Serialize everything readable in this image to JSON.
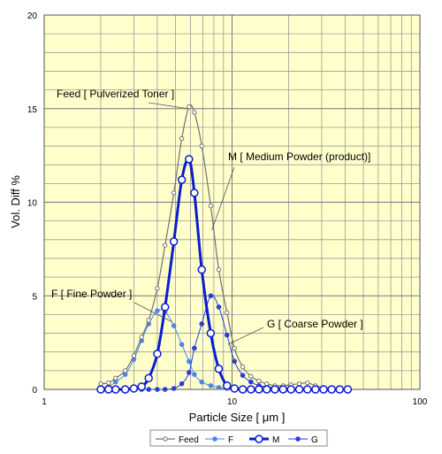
{
  "chart_data": {
    "type": "line",
    "xscale": "log",
    "xlim": [
      1,
      100
    ],
    "ylim": [
      0,
      20
    ],
    "x_ticks": [
      1,
      10,
      100
    ],
    "x_tick_labels": [
      "1",
      "10",
      "100"
    ],
    "y_ticks": [
      0,
      5,
      10,
      15,
      20
    ],
    "y_tick_labels": [
      "0",
      "5",
      "10",
      "15",
      "20"
    ],
    "xlabel": "Particle Size [ μm ]",
    "ylabel": "Vol. Diff %",
    "grid": true,
    "plot_background": "#ffffcc",
    "legend_position": "bottom",
    "series": [
      {
        "name": "Feed",
        "color": "#707070",
        "marker": "open-small",
        "x": [
          2.0,
          2.2,
          2.4,
          2.7,
          3.0,
          3.3,
          3.6,
          4.0,
          4.4,
          4.9,
          5.4,
          5.9,
          6.3,
          6.9,
          7.7,
          8.5,
          9.4,
          10.3,
          11.4,
          12.6,
          13.9,
          15.3,
          16.9,
          18.7,
          20.6,
          22.8,
          25.2,
          27.8,
          30.7,
          33.9,
          37.4,
          41.3
        ],
        "y": [
          0.3,
          0.35,
          0.6,
          1.0,
          1.8,
          2.8,
          3.7,
          5.4,
          7.7,
          10.5,
          13.4,
          15.1,
          14.8,
          13.0,
          9.8,
          6.4,
          4.1,
          2.2,
          1.2,
          0.7,
          0.45,
          0.3,
          0.2,
          0.2,
          0.25,
          0.3,
          0.35,
          0.2,
          0.1,
          0.05,
          0.05,
          0.05
        ]
      },
      {
        "name": "F",
        "color": "#4a86e8",
        "marker": "filled-small",
        "x": [
          2.0,
          2.2,
          2.4,
          2.7,
          3.0,
          3.3,
          3.6,
          4.0,
          4.4,
          4.9,
          5.4,
          5.9,
          6.3,
          6.9,
          7.7,
          8.5,
          9.4,
          10.3,
          11.4,
          12.6,
          13.9,
          15.3,
          16.9,
          18.7,
          20.6,
          22.8,
          25.2,
          27.8,
          30.7,
          33.9,
          37.4,
          41.3
        ],
        "y": [
          0.05,
          0.15,
          0.4,
          0.8,
          1.6,
          2.6,
          3.5,
          4.2,
          4.15,
          3.4,
          2.4,
          1.5,
          0.8,
          0.4,
          0.2,
          0.1,
          0.05,
          0.02,
          0.01,
          0.0,
          0.0,
          0.0,
          0.0,
          0.0,
          0.0,
          0.0,
          0.0,
          0.0,
          0.0,
          0.0,
          0.0,
          0.0
        ]
      },
      {
        "name": "M",
        "color": "#0a1bd0",
        "marker": "open-large",
        "x": [
          2.0,
          2.2,
          2.4,
          2.7,
          3.0,
          3.3,
          3.6,
          4.0,
          4.4,
          4.9,
          5.4,
          5.9,
          6.3,
          6.9,
          7.7,
          8.5,
          9.4,
          10.3,
          11.4,
          12.6,
          13.9,
          15.3,
          16.9,
          18.7,
          20.6,
          22.8,
          25.2,
          27.8,
          30.7,
          33.9,
          37.4,
          41.3
        ],
        "y": [
          0.0,
          0.0,
          0.0,
          0.0,
          0.05,
          0.15,
          0.6,
          1.9,
          4.4,
          7.9,
          11.2,
          12.3,
          10.5,
          6.4,
          3.0,
          1.1,
          0.2,
          0.05,
          0.0,
          0.0,
          0.0,
          0.0,
          0.0,
          0.0,
          0.0,
          0.0,
          0.0,
          0.0,
          0.0,
          0.0,
          0.0,
          0.0
        ]
      },
      {
        "name": "G",
        "color": "#2a3ed8",
        "marker": "filled-small",
        "x": [
          2.0,
          2.2,
          2.4,
          2.7,
          3.0,
          3.3,
          3.6,
          4.0,
          4.4,
          4.9,
          5.4,
          5.9,
          6.3,
          6.9,
          7.7,
          8.5,
          9.4,
          10.3,
          11.4,
          12.6,
          13.9,
          15.3,
          16.9,
          18.7,
          20.6,
          22.8,
          25.2,
          27.8,
          30.7,
          33.9,
          37.4,
          41.3
        ],
        "y": [
          0.0,
          0.0,
          0.0,
          0.0,
          0.0,
          0.0,
          0.0,
          0.0,
          0.0,
          0.05,
          0.3,
          0.9,
          2.2,
          3.5,
          5.0,
          4.4,
          2.9,
          1.5,
          0.75,
          0.4,
          0.2,
          0.15,
          0.1,
          0.1,
          0.05,
          0.05,
          0.0,
          0.0,
          0.0,
          0.0,
          0.0,
          0.0
        ]
      }
    ],
    "annotations": [
      {
        "text": "Feed [ Pulverized Toner ]",
        "series": "Feed",
        "target_x": 5.8,
        "target_y": 15.0
      },
      {
        "text": "M [ Medium Powder (product)]",
        "series": "M",
        "target_x": 7.8,
        "target_y": 8.5
      },
      {
        "text": "F [ Fine Powder ]",
        "series": "F",
        "target_x": 4.8,
        "target_y": 3.6
      },
      {
        "text": "G [ Coarse Powder ]",
        "series": "G",
        "target_x": 9.5,
        "target_y": 2.4
      }
    ]
  }
}
